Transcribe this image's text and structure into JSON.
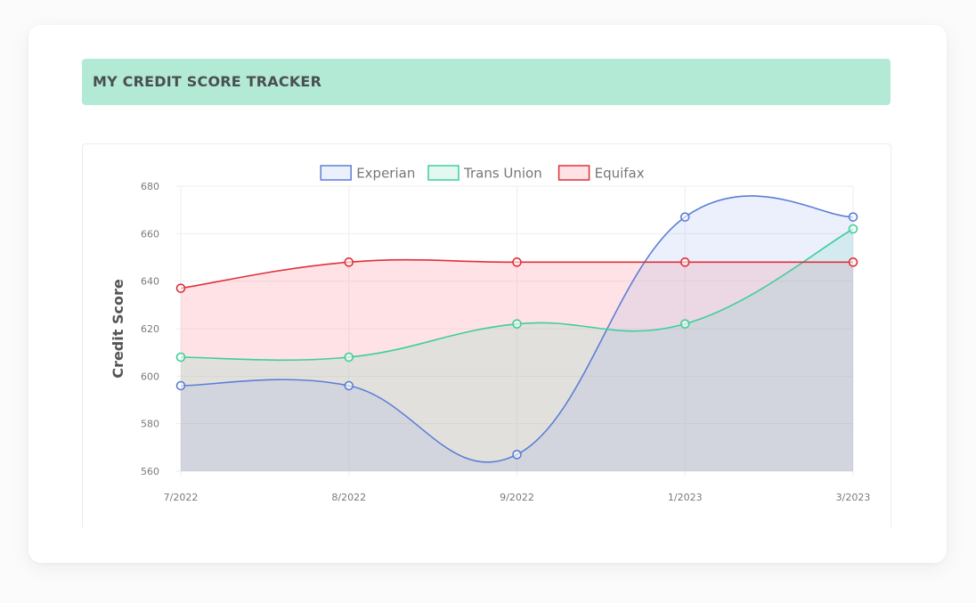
{
  "page": {
    "title": "MY CREDIT SCORE TRACKER"
  },
  "chart_data": {
    "type": "area",
    "categories": [
      "7/2022",
      "8/2022",
      "9/2022",
      "1/2023",
      "3/2023"
    ],
    "ylabel": "Credit Score",
    "ylim": [
      560,
      680
    ],
    "yticks": [
      680,
      660,
      640,
      620,
      600,
      580,
      560
    ],
    "grid": true,
    "legend_position": "top",
    "series": [
      {
        "name": "Experian",
        "values": [
          596,
          596,
          567,
          667,
          667
        ],
        "color": "#5b7fd6",
        "fill": "rgba(120,150,235,0.14)"
      },
      {
        "name": "Trans Union",
        "values": [
          608,
          608,
          622,
          622,
          662
        ],
        "color": "#3dcf9b",
        "fill": "rgba(110,220,185,0.20)"
      },
      {
        "name": "Equifax",
        "values": [
          637,
          648,
          648,
          648,
          648
        ],
        "color": "#e0303a",
        "fill": "rgba(255,140,150,0.25)"
      }
    ]
  }
}
